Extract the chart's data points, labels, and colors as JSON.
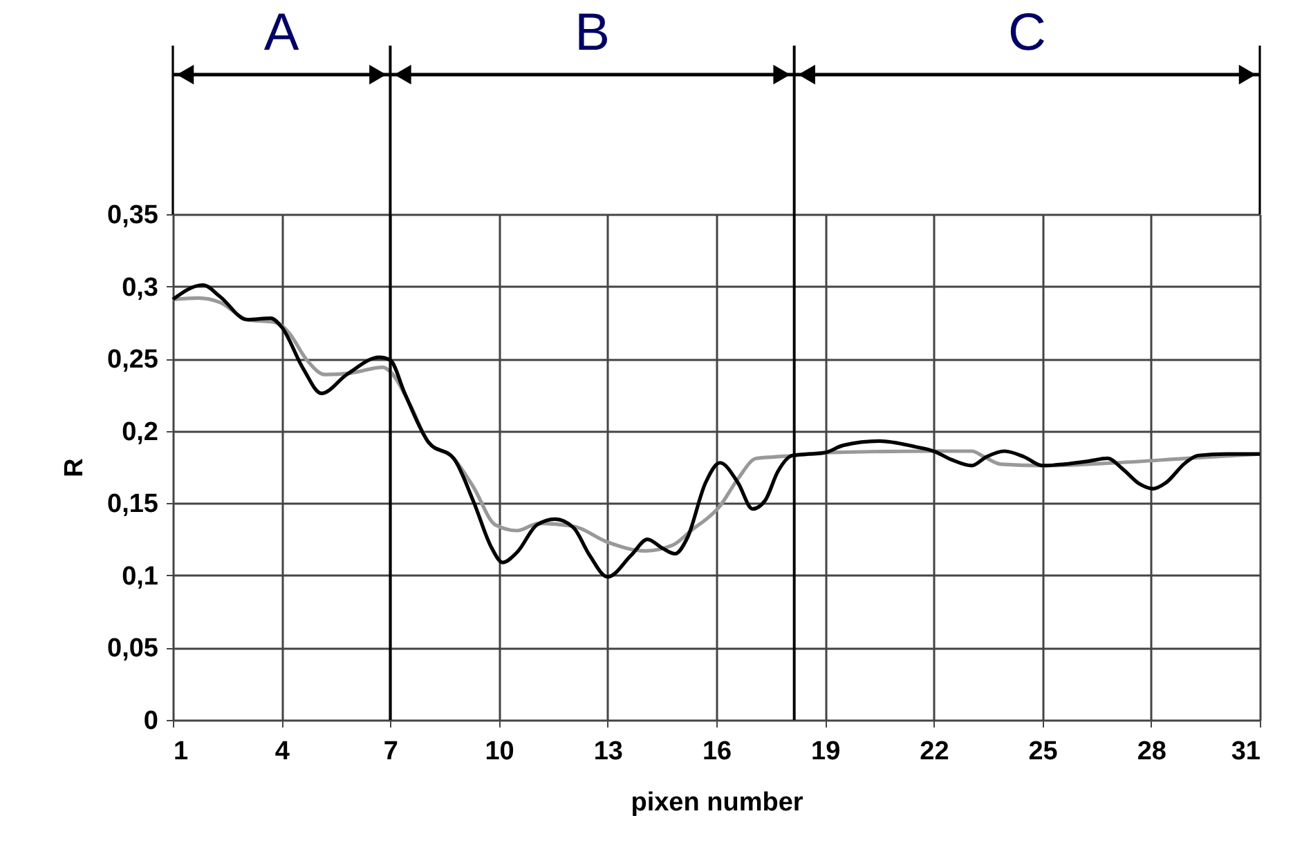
{
  "chart_data": {
    "type": "line",
    "xlabel": "pixen number",
    "ylabel": "R",
    "xlim": [
      1,
      31
    ],
    "xticks": [
      1,
      4,
      7,
      10,
      13,
      16,
      19,
      22,
      25,
      28,
      31
    ],
    "ylim": [
      0,
      0.35
    ],
    "yticks": [
      {
        "value": 0,
        "label": "0"
      },
      {
        "value": 0.05,
        "label": "0,05"
      },
      {
        "value": 0.1,
        "label": "0,1"
      },
      {
        "value": 0.15,
        "label": "0,15"
      },
      {
        "value": 0.2,
        "label": "0,2"
      },
      {
        "value": 0.25,
        "label": "0,25"
      },
      {
        "value": 0.3,
        "label": "0,3"
      },
      {
        "value": 0.35,
        "label": "0,35"
      }
    ],
    "grid": true,
    "ref_lines": [
      {
        "axis": "x",
        "value": 7,
        "color": "#000000"
      },
      {
        "axis": "x",
        "value": 18.15,
        "color": "#000000"
      }
    ],
    "annotations": [
      "A",
      "B",
      "C"
    ],
    "series": [
      {
        "color": "#999999",
        "x": [
          1,
          1.7,
          2.3,
          3.05,
          3.85,
          4.2,
          4.7,
          5.2,
          5.9,
          6.8,
          7.04,
          7.55,
          8.06,
          8.75,
          9.3,
          9.9,
          10.5,
          11.1,
          12.06,
          13,
          14.04,
          14.8,
          15.3,
          16.1,
          16.6,
          17.1,
          17.6,
          18.2,
          19,
          22,
          23.05,
          23.4,
          23.85,
          25,
          27.05,
          29,
          31
        ],
        "values": [
          0.291,
          0.292,
          0.289,
          0.277,
          0.275,
          0.268,
          0.249,
          0.239,
          0.24,
          0.244,
          0.24,
          0.218,
          0.192,
          0.181,
          0.161,
          0.135,
          0.131,
          0.136,
          0.134,
          0.123,
          0.117,
          0.121,
          0.131,
          0.148,
          0.167,
          0.181,
          0.182,
          0.183,
          0.185,
          0.186,
          0.186,
          0.182,
          0.177,
          0.176,
          0.178,
          0.181,
          0.184
        ]
      },
      {
        "color": "#000000",
        "x": [
          1,
          1.83,
          2.3,
          3.05,
          3.7,
          4,
          4.6,
          5.1,
          5.8,
          6.7,
          7,
          7.4,
          8.06,
          8.75,
          9.3,
          9.8,
          10.1,
          10.5,
          11.05,
          11.55,
          12.06,
          12.5,
          13,
          13.65,
          14.1,
          14.5,
          14.86,
          15.2,
          15.7,
          16.1,
          16.6,
          17,
          17.35,
          17.7,
          18.1,
          19,
          19.5,
          20.5,
          21.5,
          22,
          22.5,
          23.05,
          23.45,
          23.95,
          24.5,
          25,
          25.6,
          26.25,
          26.8,
          27.2,
          27.7,
          28.05,
          28.4,
          28.95,
          29.3,
          30.1,
          31
        ],
        "values": [
          0.291,
          0.301,
          0.293,
          0.277,
          0.278,
          0.272,
          0.243,
          0.226,
          0.239,
          0.251,
          0.249,
          0.226,
          0.192,
          0.181,
          0.151,
          0.119,
          0.109,
          0.116,
          0.135,
          0.139,
          0.133,
          0.114,
          0.099,
          0.114,
          0.125,
          0.119,
          0.115,
          0.126,
          0.164,
          0.178,
          0.164,
          0.146,
          0.152,
          0.172,
          0.183,
          0.185,
          0.19,
          0.193,
          0.189,
          0.186,
          0.18,
          0.176,
          0.182,
          0.186,
          0.182,
          0.176,
          0.177,
          0.179,
          0.181,
          0.174,
          0.163,
          0.16,
          0.164,
          0.178,
          0.183,
          0.184,
          0.184
        ]
      }
    ]
  }
}
